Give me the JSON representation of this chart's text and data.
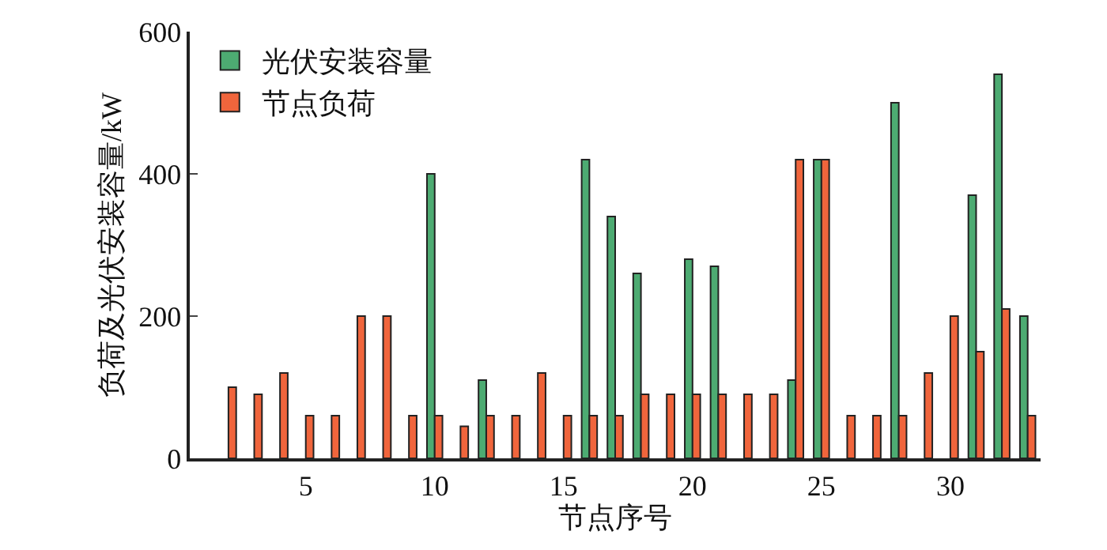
{
  "chart_data": {
    "type": "bar",
    "xlabel": "节点序号",
    "ylabel": "负荷及光伏安装容量/kW",
    "x": [
      2,
      3,
      4,
      5,
      6,
      7,
      8,
      9,
      10,
      11,
      12,
      13,
      14,
      15,
      16,
      17,
      18,
      19,
      20,
      21,
      22,
      23,
      24,
      25,
      26,
      27,
      28,
      29,
      30,
      31,
      32,
      33
    ],
    "series": [
      {
        "name": "光伏安装容量",
        "color": "#4dab72",
        "values": [
          null,
          null,
          null,
          null,
          null,
          null,
          null,
          null,
          400,
          null,
          110,
          null,
          null,
          null,
          420,
          340,
          260,
          null,
          280,
          270,
          null,
          null,
          110,
          420,
          null,
          null,
          500,
          null,
          null,
          370,
          540,
          200
        ]
      },
      {
        "name": "节点负荷",
        "color": "#f0653c",
        "values": [
          100,
          90,
          120,
          60,
          60,
          200,
          200,
          60,
          60,
          45,
          60,
          60,
          120,
          60,
          60,
          60,
          90,
          90,
          90,
          90,
          90,
          90,
          420,
          420,
          60,
          60,
          60,
          120,
          200,
          150,
          210,
          60
        ]
      }
    ],
    "xlim": [
      0.5,
      33.5
    ],
    "xticks": [
      5,
      10,
      15,
      20,
      25,
      30
    ],
    "ylim": [
      0,
      600
    ],
    "yticks": [
      0,
      200,
      400,
      600
    ],
    "legend": "top left"
  }
}
